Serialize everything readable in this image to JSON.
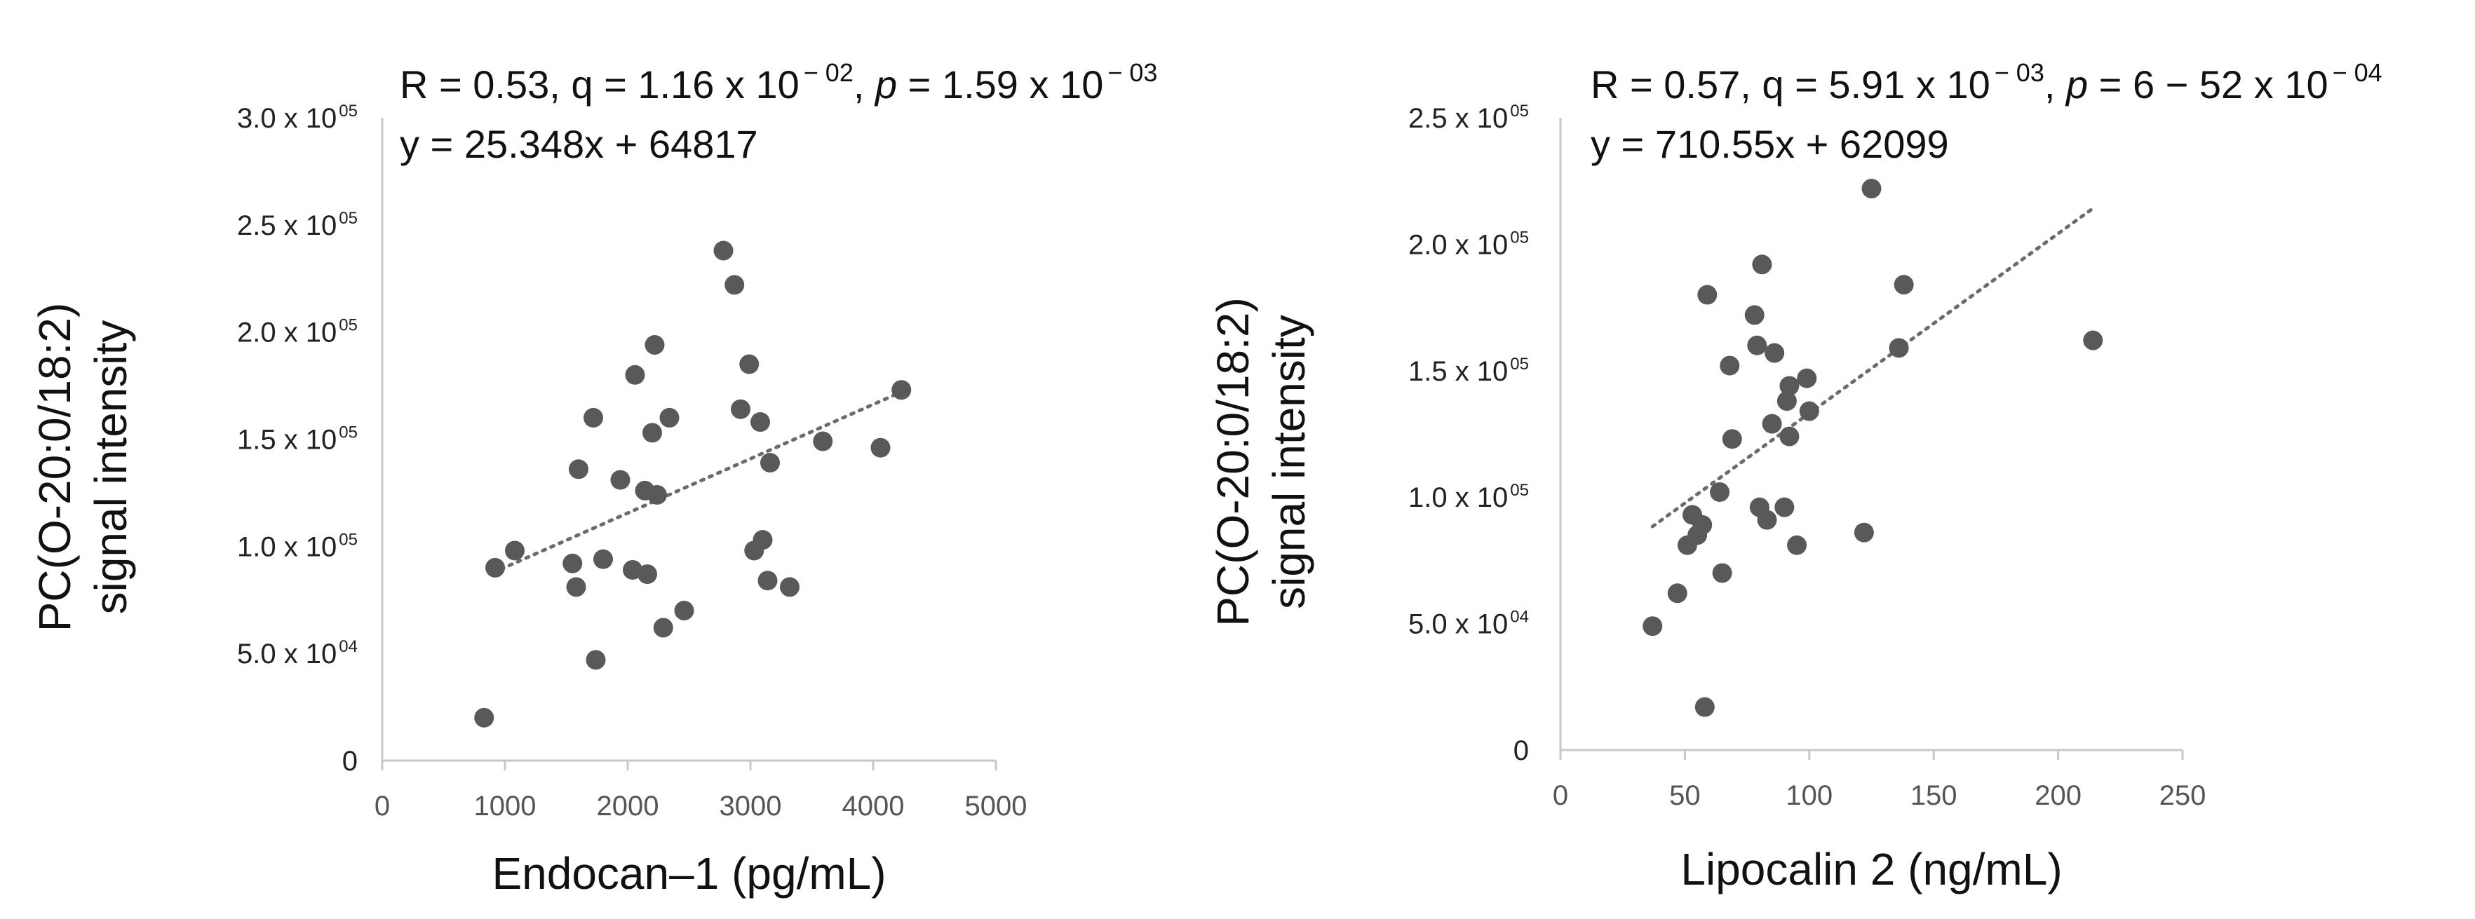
{
  "chart_data": [
    {
      "type": "scatter",
      "title": "",
      "stats": {
        "R": "R = 0.53",
        "q_base": "q = 1.16 x 10",
        "q_exp": "− 02",
        "p_label": "p",
        "p_value": " = 1.59 x 10",
        "p_exp": "− 03"
      },
      "equation": "y = 25.348x + 64817",
      "xlabel": "Endocan–1 (pg/mL)",
      "ylabel_line1": "PC(O-20:0/18:2)",
      "ylabel_line2": "signal intensity",
      "xlim": [
        0,
        5000
      ],
      "ylim": [
        0,
        300000
      ],
      "x_ticks": [
        {
          "value": 0,
          "label": "0"
        },
        {
          "value": 1000,
          "label": "1000"
        },
        {
          "value": 2000,
          "label": "2000"
        },
        {
          "value": 3000,
          "label": "3000"
        },
        {
          "value": 4000,
          "label": "4000"
        },
        {
          "value": 5000,
          "label": "5000"
        }
      ],
      "y_ticks": [
        {
          "value": 0,
          "base": "0",
          "exp": ""
        },
        {
          "value": 50000,
          "base": "5.0 x 10",
          "exp": "04"
        },
        {
          "value": 100000,
          "base": "1.0 x 10",
          "exp": "05"
        },
        {
          "value": 150000,
          "base": "1.5 x 10",
          "exp": "05"
        },
        {
          "value": 200000,
          "base": "2.0 x 10",
          "exp": "05"
        },
        {
          "value": 250000,
          "base": "2.5 x 10",
          "exp": "05"
        },
        {
          "value": 300000,
          "base": "3.0 x 10",
          "exp": "05"
        }
      ],
      "trendline": {
        "slope": 25.348,
        "intercept": 64817,
        "x_range": [
          900,
          4230
        ]
      },
      "points": [
        {
          "x": 830,
          "y": 20000
        },
        {
          "x": 920,
          "y": 90000
        },
        {
          "x": 1080,
          "y": 98000
        },
        {
          "x": 1550,
          "y": 92000
        },
        {
          "x": 1580,
          "y": 81000
        },
        {
          "x": 1600,
          "y": 136000
        },
        {
          "x": 1720,
          "y": 160000
        },
        {
          "x": 1740,
          "y": 47000
        },
        {
          "x": 1800,
          "y": 94000
        },
        {
          "x": 1940,
          "y": 131000
        },
        {
          "x": 2040,
          "y": 89000
        },
        {
          "x": 2060,
          "y": 180000
        },
        {
          "x": 2140,
          "y": 126000
        },
        {
          "x": 2160,
          "y": 87000
        },
        {
          "x": 2200,
          "y": 153000
        },
        {
          "x": 2220,
          "y": 194000
        },
        {
          "x": 2240,
          "y": 124000
        },
        {
          "x": 2290,
          "y": 62000
        },
        {
          "x": 2340,
          "y": 160000
        },
        {
          "x": 2460,
          "y": 70000
        },
        {
          "x": 2780,
          "y": 238000
        },
        {
          "x": 2870,
          "y": 222000
        },
        {
          "x": 2920,
          "y": 164000
        },
        {
          "x": 2990,
          "y": 185000
        },
        {
          "x": 3030,
          "y": 98000
        },
        {
          "x": 3080,
          "y": 158000
        },
        {
          "x": 3100,
          "y": 103000
        },
        {
          "x": 3140,
          "y": 84000
        },
        {
          "x": 3160,
          "y": 139000
        },
        {
          "x": 3320,
          "y": 81000
        },
        {
          "x": 3590,
          "y": 149000
        },
        {
          "x": 4060,
          "y": 146000
        },
        {
          "x": 4230,
          "y": 173000
        }
      ]
    },
    {
      "type": "scatter",
      "title": "",
      "stats": {
        "R": "R = 0.57",
        "q_base": "q = 5.91 x 10",
        "q_exp": "− 03",
        "p_label": "p",
        "p_value": " = 6 − 52 x 10",
        "p_exp": "− 04"
      },
      "equation": "y = 710.55x + 62099",
      "xlabel": "Lipocalin 2 (ng/mL)",
      "ylabel_line1": "PC(O-20:0/18:2)",
      "ylabel_line2": "signal intensity",
      "xlim": [
        0,
        250
      ],
      "ylim": [
        0,
        250000
      ],
      "x_ticks": [
        {
          "value": 0,
          "label": "0"
        },
        {
          "value": 50,
          "label": "50"
        },
        {
          "value": 100,
          "label": "100"
        },
        {
          "value": 150,
          "label": "150"
        },
        {
          "value": 200,
          "label": "200"
        },
        {
          "value": 250,
          "label": "250"
        }
      ],
      "y_ticks": [
        {
          "value": 0,
          "base": "0",
          "exp": ""
        },
        {
          "value": 50000,
          "base": "5.0 x 10",
          "exp": "04"
        },
        {
          "value": 100000,
          "base": "1.0 x 10",
          "exp": "05"
        },
        {
          "value": 150000,
          "base": "1.5 x 10",
          "exp": "05"
        },
        {
          "value": 200000,
          "base": "2.0 x 10",
          "exp": "05"
        },
        {
          "value": 250000,
          "base": "2.5 x 10",
          "exp": "05"
        }
      ],
      "trendline": {
        "slope": 710.55,
        "intercept": 62099,
        "x_range": [
          37,
          214
        ]
      },
      "points": [
        {
          "x": 37,
          "y": 49000
        },
        {
          "x": 47,
          "y": 62000
        },
        {
          "x": 51,
          "y": 81000
        },
        {
          "x": 53,
          "y": 93000
        },
        {
          "x": 55,
          "y": 85000
        },
        {
          "x": 57,
          "y": 89000
        },
        {
          "x": 58,
          "y": 17000
        },
        {
          "x": 59,
          "y": 180000
        },
        {
          "x": 64,
          "y": 102000
        },
        {
          "x": 65,
          "y": 70000
        },
        {
          "x": 68,
          "y": 152000
        },
        {
          "x": 69,
          "y": 123000
        },
        {
          "x": 78,
          "y": 172000
        },
        {
          "x": 79,
          "y": 160000
        },
        {
          "x": 80,
          "y": 96000
        },
        {
          "x": 81,
          "y": 192000
        },
        {
          "x": 83,
          "y": 91000
        },
        {
          "x": 85,
          "y": 129000
        },
        {
          "x": 86,
          "y": 157000
        },
        {
          "x": 90,
          "y": 96000
        },
        {
          "x": 91,
          "y": 138000
        },
        {
          "x": 92,
          "y": 124000
        },
        {
          "x": 92,
          "y": 144000
        },
        {
          "x": 95,
          "y": 81000
        },
        {
          "x": 99,
          "y": 147000
        },
        {
          "x": 100,
          "y": 134000
        },
        {
          "x": 122,
          "y": 86000
        },
        {
          "x": 125,
          "y": 222000
        },
        {
          "x": 136,
          "y": 159000
        },
        {
          "x": 138,
          "y": 184000
        },
        {
          "x": 214,
          "y": 162000
        }
      ]
    }
  ]
}
